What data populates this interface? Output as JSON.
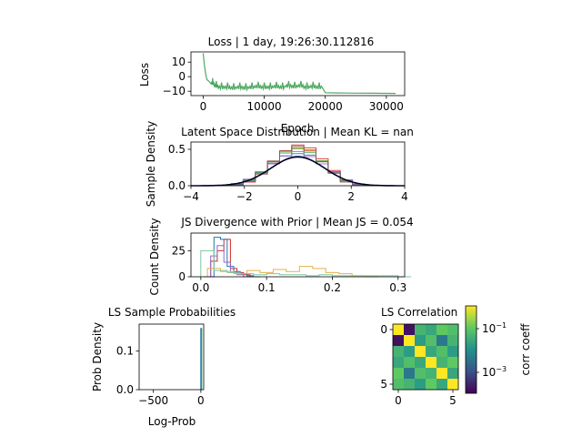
{
  "chart_data": [
    {
      "id": "loss",
      "type": "line",
      "title": "Loss | 1 day, 19:26:30.112816",
      "xlabel": "Epoch",
      "ylabel": "Loss",
      "xlim": [
        -2000,
        33000
      ],
      "ylim": [
        -13,
        17
      ],
      "xticks": [
        0,
        10000,
        20000,
        30000
      ],
      "yticks": [
        10,
        0,
        -10
      ],
      "color": "#4ca85f",
      "series": [
        {
          "x": [
            0,
            200,
            400,
            600,
            900,
            1300,
            1800,
            2500,
            3500,
            4500,
            5500,
            6500,
            7500,
            8500,
            9500,
            10500,
            11500,
            12500,
            13500,
            14500,
            15500,
            16500,
            17500,
            18500,
            19500,
            20000,
            22000,
            25000,
            28000,
            31500
          ],
          "y": [
            16,
            8,
            2,
            -2,
            -3,
            -5,
            -7,
            -8,
            -8,
            -8.5,
            -8,
            -8.5,
            -8,
            -7.5,
            -8,
            -8,
            -7.5,
            -8,
            -7,
            -7.5,
            -7,
            -8,
            -7.5,
            -8,
            -7.5,
            -11,
            -11.2,
            -11.3,
            -11.4,
            -11.5
          ]
        }
      ]
    },
    {
      "id": "latent",
      "type": "line",
      "title": "Latent Space Distribution | Mean KL = nan",
      "xlabel": "",
      "ylabel": "Sample Density",
      "xlim": [
        -4,
        4
      ],
      "ylim": [
        0,
        0.6
      ],
      "xticks": [
        -4,
        -2,
        0,
        2,
        4
      ],
      "yticks": [
        0.0,
        0.5
      ],
      "prior_color": "#0a1a6e",
      "series": [
        {
          "color": "#d62728",
          "values": [
            0.01,
            0.05,
            0.17,
            0.33,
            0.48,
            0.56,
            0.52,
            0.37,
            0.21,
            0.07,
            0.02
          ]
        },
        {
          "color": "#ff7f0e",
          "values": [
            0.01,
            0.06,
            0.17,
            0.33,
            0.47,
            0.52,
            0.48,
            0.34,
            0.18,
            0.06,
            0.01
          ]
        },
        {
          "color": "#2ca02c",
          "values": [
            0.02,
            0.07,
            0.18,
            0.33,
            0.45,
            0.51,
            0.46,
            0.34,
            0.19,
            0.07,
            0.02
          ]
        },
        {
          "color": "#1f77b4",
          "values": [
            0.02,
            0.08,
            0.19,
            0.31,
            0.41,
            0.44,
            0.42,
            0.33,
            0.19,
            0.08,
            0.02
          ]
        },
        {
          "color": "#9467bd",
          "values": [
            0.03,
            0.09,
            0.19,
            0.3,
            0.41,
            0.47,
            0.4,
            0.3,
            0.18,
            0.08,
            0.02
          ]
        },
        {
          "color": "#8c564b",
          "values": [
            0.01,
            0.06,
            0.16,
            0.34,
            0.48,
            0.54,
            0.49,
            0.33,
            0.17,
            0.05,
            0.01
          ]
        }
      ],
      "bin_range": [
        -2.5,
        2.5
      ]
    },
    {
      "id": "js",
      "type": "line",
      "title": "JS Divergence with Prior | Mean JS = 0.054",
      "xlabel": "",
      "ylabel": "Count Density",
      "xlim": [
        -0.015,
        0.31
      ],
      "ylim": [
        0,
        42
      ],
      "xticks": [
        0.0,
        0.1,
        0.2,
        0.3
      ],
      "yticks": [
        0,
        25
      ],
      "series": [
        {
          "color": "#d62728",
          "bins": [
            0.005,
            0.015,
            0.025,
            0.035,
            0.045,
            0.055,
            0.065,
            0.075
          ],
          "values": [
            0,
            15,
            25,
            36,
            8,
            4,
            2,
            0
          ]
        },
        {
          "color": "#1f77b4",
          "bins": [
            0.01,
            0.02,
            0.03,
            0.04,
            0.05,
            0.06,
            0.07,
            0.08
          ],
          "values": [
            0,
            38,
            36,
            10,
            5,
            3,
            1,
            0
          ]
        },
        {
          "color": "#9467bd",
          "bins": [
            0.005,
            0.015,
            0.025,
            0.035,
            0.045,
            0.055,
            0.065
          ],
          "values": [
            0,
            20,
            30,
            14,
            4,
            2,
            0
          ]
        },
        {
          "color": "#e3b04b",
          "bins": [
            0.01,
            0.03,
            0.05,
            0.07,
            0.09,
            0.11,
            0.13,
            0.15,
            0.17,
            0.19,
            0.21,
            0.23,
            0.25
          ],
          "values": [
            8,
            5,
            3,
            6,
            4,
            7,
            5,
            10,
            8,
            4,
            3,
            1,
            0
          ]
        },
        {
          "color": "#7ec8a0",
          "bins": [
            0.0,
            0.02,
            0.04,
            0.06,
            0.08,
            0.1,
            0.12,
            0.14,
            0.16,
            0.18,
            0.2,
            0.22,
            0.24,
            0.26,
            0.28,
            0.3
          ],
          "values": [
            25,
            6,
            4,
            3,
            2,
            3,
            2,
            2,
            1,
            2,
            1,
            1,
            1,
            1,
            1,
            0
          ]
        }
      ]
    },
    {
      "id": "probs",
      "type": "bar",
      "title": "LS Sample Probabilities",
      "xlabel": "Log-Prob",
      "ylabel": "Prob Density",
      "xlim": [
        -650,
        30
      ],
      "ylim": [
        0,
        0.17
      ],
      "xticks": [
        -500,
        0
      ],
      "yticks": [
        0.0,
        0.1
      ],
      "bars": [
        {
          "x": 0,
          "value": 0.16,
          "color": "#1f77b4"
        },
        {
          "x": 8,
          "value": 0.16,
          "color": "#2ca02c"
        }
      ]
    },
    {
      "id": "corr",
      "type": "heatmap",
      "title": "LS Correlation",
      "xticks": [
        0,
        5
      ],
      "yticks": [
        0,
        5
      ],
      "colorbar_label": "corr coeff",
      "colorbar_ticks": [
        "10",
        "10"
      ],
      "colorbar_exponents": [
        "−1",
        "−3"
      ],
      "matrix": [
        [
          1.0,
          -0.9,
          0.3,
          0.2,
          0.5,
          0.4
        ],
        [
          -0.9,
          1.0,
          0.1,
          0.4,
          -0.2,
          0.3
        ],
        [
          0.3,
          0.1,
          1.0,
          0.2,
          0.4,
          0.1
        ],
        [
          0.2,
          0.4,
          0.2,
          1.0,
          0.3,
          0.5
        ],
        [
          0.5,
          -0.2,
          0.4,
          0.3,
          1.0,
          0.2
        ],
        [
          0.4,
          0.3,
          0.1,
          0.5,
          0.2,
          1.0
        ]
      ]
    }
  ]
}
